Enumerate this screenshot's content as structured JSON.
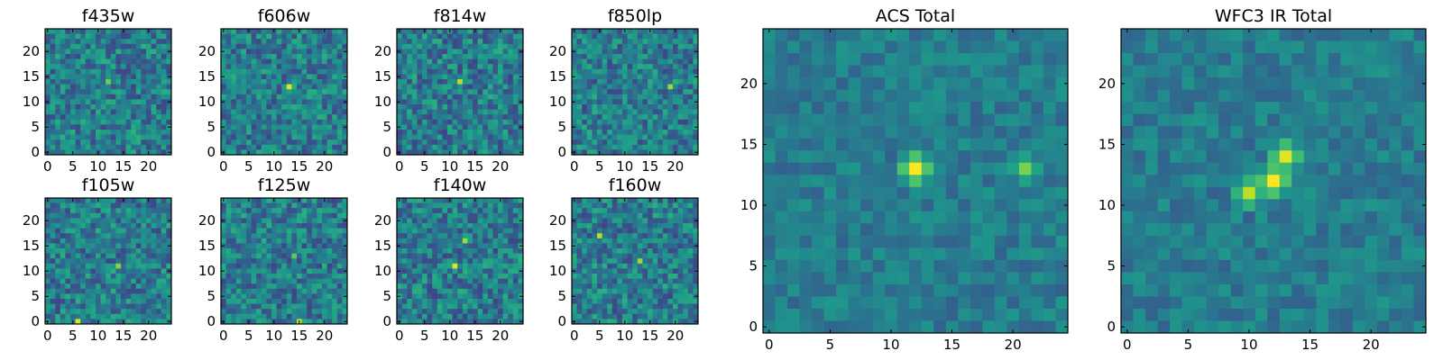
{
  "chart_data": [
    {
      "type": "heatmap",
      "title": "f435w",
      "x_ticks": [
        "0",
        "5",
        "10",
        "15",
        "20"
      ],
      "y_ticks": [
        "0",
        "5",
        "10",
        "15",
        "20"
      ],
      "grid_size": 25,
      "colormap": "viridis",
      "hotspots": [
        {
          "x": 12,
          "y": 14,
          "value": 0.78
        }
      ]
    },
    {
      "type": "heatmap",
      "title": "f606w",
      "x_ticks": [
        "0",
        "5",
        "10",
        "15",
        "20"
      ],
      "y_ticks": [
        "0",
        "5",
        "10",
        "15",
        "20"
      ],
      "grid_size": 25,
      "colormap": "viridis",
      "hotspots": [
        {
          "x": 13,
          "y": 13,
          "value": 0.95
        }
      ]
    },
    {
      "type": "heatmap",
      "title": "f814w",
      "x_ticks": [
        "0",
        "5",
        "10",
        "15",
        "20"
      ],
      "y_ticks": [
        "0",
        "5",
        "10",
        "15",
        "20"
      ],
      "grid_size": 25,
      "colormap": "viridis",
      "hotspots": [
        {
          "x": 12,
          "y": 14,
          "value": 0.9
        }
      ]
    },
    {
      "type": "heatmap",
      "title": "f850lp",
      "x_ticks": [
        "0",
        "5",
        "10",
        "15",
        "20"
      ],
      "y_ticks": [
        "0",
        "5",
        "10",
        "15",
        "20"
      ],
      "grid_size": 25,
      "colormap": "viridis",
      "hotspots": [
        {
          "x": 19,
          "y": 13,
          "value": 0.85
        }
      ]
    },
    {
      "type": "heatmap",
      "title": "f105w",
      "x_ticks": [
        "0",
        "5",
        "10",
        "15",
        "20"
      ],
      "y_ticks": [
        "0",
        "5",
        "10",
        "15",
        "20"
      ],
      "grid_size": 25,
      "colormap": "viridis",
      "hotspots": [
        {
          "x": 14,
          "y": 11,
          "value": 0.82
        },
        {
          "x": 6,
          "y": 0,
          "value": 0.95
        }
      ]
    },
    {
      "type": "heatmap",
      "title": "f125w",
      "x_ticks": [
        "0",
        "5",
        "10",
        "15",
        "20"
      ],
      "y_ticks": [
        "0",
        "5",
        "10",
        "15",
        "20"
      ],
      "grid_size": 25,
      "colormap": "viridis",
      "hotspots": [
        {
          "x": 15,
          "y": 0,
          "value": 0.9
        },
        {
          "x": 14,
          "y": 13,
          "value": 0.75
        }
      ]
    },
    {
      "type": "heatmap",
      "title": "f140w",
      "x_ticks": [
        "0",
        "5",
        "10",
        "15",
        "20"
      ],
      "y_ticks": [
        "0",
        "5",
        "10",
        "15",
        "20"
      ],
      "grid_size": 25,
      "colormap": "viridis",
      "hotspots": [
        {
          "x": 11,
          "y": 11,
          "value": 0.95
        },
        {
          "x": 13,
          "y": 16,
          "value": 0.85
        }
      ]
    },
    {
      "type": "heatmap",
      "title": "f160w",
      "x_ticks": [
        "0",
        "5",
        "10",
        "15",
        "20"
      ],
      "y_ticks": [
        "0",
        "5",
        "10",
        "15",
        "20"
      ],
      "grid_size": 25,
      "colormap": "viridis",
      "hotspots": [
        {
          "x": 13,
          "y": 12,
          "value": 0.85
        },
        {
          "x": 5,
          "y": 17,
          "value": 0.9
        }
      ]
    },
    {
      "type": "heatmap",
      "title": "ACS Total",
      "x_ticks": [
        "0",
        "5",
        "10",
        "15",
        "20"
      ],
      "y_ticks": [
        "0",
        "5",
        "10",
        "15",
        "20"
      ],
      "grid_size": 25,
      "colormap": "viridis",
      "hotspots": [
        {
          "x": 12,
          "y": 13,
          "value": 1.0
        },
        {
          "x": 21,
          "y": 13,
          "value": 0.8
        }
      ]
    },
    {
      "type": "heatmap",
      "title": "WFC3 IR Total",
      "x_ticks": [
        "0",
        "5",
        "10",
        "15",
        "20"
      ],
      "y_ticks": [
        "0",
        "5",
        "10",
        "15",
        "20"
      ],
      "grid_size": 25,
      "colormap": "viridis",
      "hotspots": [
        {
          "x": 12,
          "y": 12,
          "value": 1.0
        },
        {
          "x": 13,
          "y": 14,
          "value": 0.95
        },
        {
          "x": 10,
          "y": 11,
          "value": 0.9
        }
      ]
    }
  ]
}
